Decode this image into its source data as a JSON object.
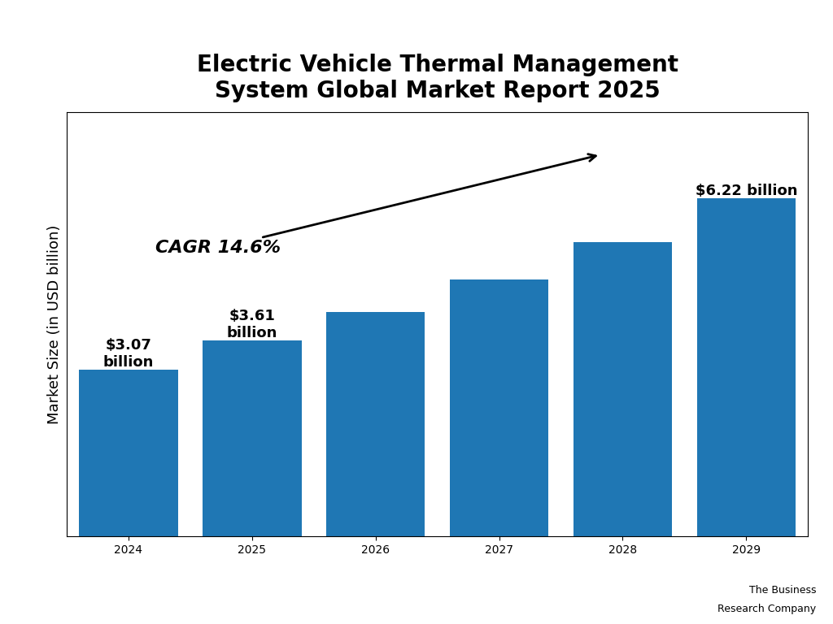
{
  "chart_data": {
    "type": "bar",
    "title": "Electric Vehicle Thermal Management\nSystem Global Market Report 2025",
    "ylabel": "Market Size (in USD billion)",
    "categories": [
      "2024",
      "2025",
      "2026",
      "2027",
      "2028",
      "2029"
    ],
    "values": [
      3.07,
      3.61,
      4.13,
      4.72,
      5.41,
      6.22
    ],
    "data_labels": true,
    "value_labels": [
      "$3.07\nbillion",
      "$3.61\nbillion",
      null,
      null,
      null,
      "$6.22 billion"
    ],
    "ylim": [
      0,
      7.8
    ],
    "tick_labels": "x",
    "grid": false,
    "annotations": [
      "CAGR 14.6%",
      "The Business",
      "Research Company"
    ]
  }
}
